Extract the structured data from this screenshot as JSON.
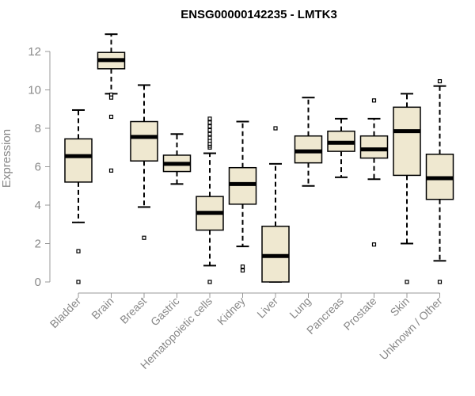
{
  "chart_data": {
    "type": "boxplot",
    "title": "ENSG00000142235 - LMTK3",
    "xlabel": "",
    "ylabel": "Expression",
    "ylim": [
      0,
      12.9
    ],
    "yticks": [
      0,
      2,
      4,
      6,
      8,
      10,
      12
    ],
    "categories": [
      "Bladder",
      "Brain",
      "Breast",
      "Gastric",
      "Hematopoietic cells",
      "Kidney",
      "Liver",
      "Lung",
      "Pancreas",
      "Prostate",
      "Skin",
      "Unknown / Other"
    ],
    "boxes": [
      {
        "q1": 5.2,
        "median": 6.55,
        "q3": 7.45,
        "whisker_low": 3.1,
        "whisker_high": 8.95,
        "outliers": [
          1.6,
          0.0
        ]
      },
      {
        "q1": 11.1,
        "median": 11.55,
        "q3": 11.95,
        "whisker_low": 9.8,
        "whisker_high": 12.9,
        "outliers": [
          9.75,
          9.6,
          8.6,
          5.8
        ]
      },
      {
        "q1": 6.3,
        "median": 7.55,
        "q3": 8.35,
        "whisker_low": 3.9,
        "whisker_high": 10.25,
        "outliers": [
          2.3
        ]
      },
      {
        "q1": 5.75,
        "median": 6.15,
        "q3": 6.6,
        "whisker_low": 5.1,
        "whisker_high": 7.7,
        "outliers": []
      },
      {
        "q1": 2.7,
        "median": 3.6,
        "q3": 4.45,
        "whisker_low": 0.85,
        "whisker_high": 6.7,
        "outliers": [
          0.0,
          7.0,
          7.1,
          7.2,
          7.35,
          7.5,
          7.7,
          7.9,
          8.1,
          8.3,
          8.5
        ]
      },
      {
        "q1": 4.05,
        "median": 5.1,
        "q3": 5.95,
        "whisker_low": 1.85,
        "whisker_high": 8.35,
        "outliers": [
          0.8,
          0.6
        ]
      },
      {
        "q1": 0.0,
        "median": 1.35,
        "q3": 2.9,
        "whisker_low": 0.0,
        "whisker_high": 6.15,
        "outliers": [
          8.0
        ]
      },
      {
        "q1": 6.2,
        "median": 6.8,
        "q3": 7.6,
        "whisker_low": 5.0,
        "whisker_high": 9.6,
        "outliers": []
      },
      {
        "q1": 6.8,
        "median": 7.25,
        "q3": 7.85,
        "whisker_low": 5.45,
        "whisker_high": 8.5,
        "outliers": []
      },
      {
        "q1": 6.45,
        "median": 6.9,
        "q3": 7.6,
        "whisker_low": 5.35,
        "whisker_high": 8.5,
        "outliers": [
          9.45,
          1.95
        ]
      },
      {
        "q1": 5.55,
        "median": 7.85,
        "q3": 9.1,
        "whisker_low": 2.0,
        "whisker_high": 9.8,
        "outliers": [
          0.0
        ]
      },
      {
        "q1": 4.3,
        "median": 5.4,
        "q3": 6.65,
        "whisker_low": 1.1,
        "whisker_high": 10.2,
        "outliers": [
          10.45,
          0.0
        ]
      }
    ],
    "colors": {
      "box_fill": "#efe8d0",
      "box_stroke": "#000000",
      "text_gray": "#888888",
      "axis_gray": "#999999"
    }
  }
}
